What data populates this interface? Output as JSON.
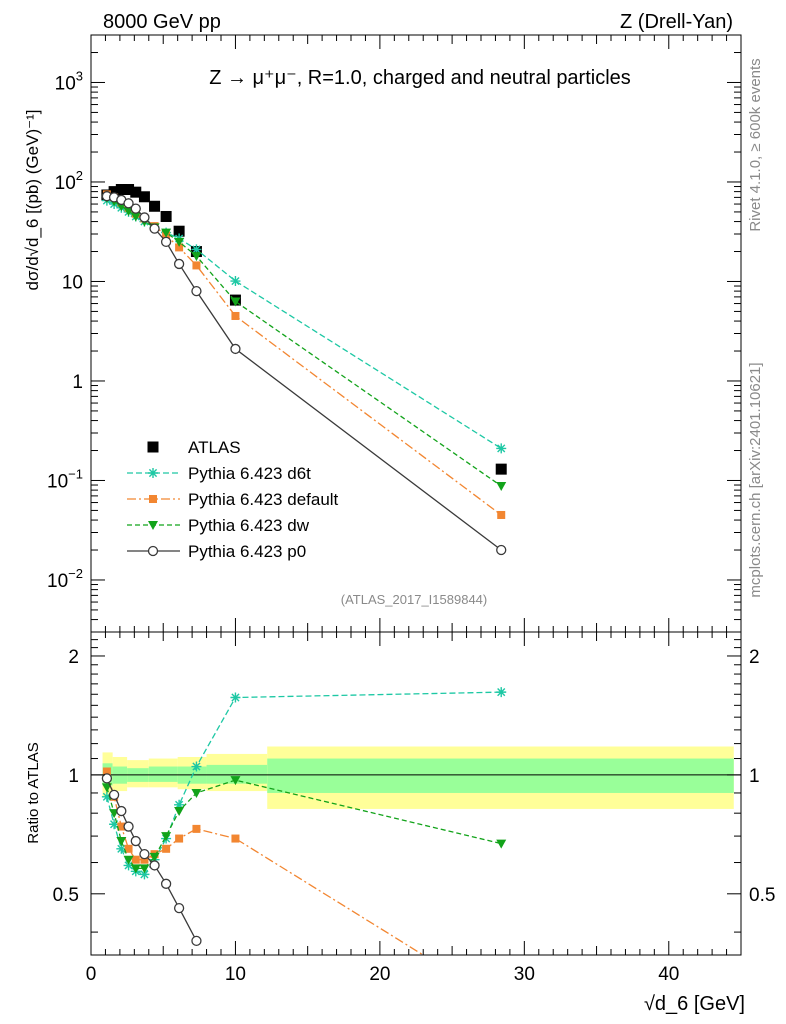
{
  "header": {
    "left_label": "8000 GeV pp",
    "right_label": "Z (Drell-Yan)"
  },
  "side_labels": {
    "rivet": "Rivet 4.1.0, ≥ 600k events",
    "mcplots": "mcplots.cern.ch [arXiv:2401.10621]"
  },
  "chart_data": [
    {
      "type": "line",
      "scale": "log",
      "title": "Z → μ⁺μ⁻, R=1.0, charged and neutral particles",
      "analysis_label": "(ATLAS_2017_I1589844)",
      "ylabel": "dσ/d√d_6 [(pb) (GeV)⁻¹]",
      "xlabel": "√d_6 [GeV]",
      "xlim": [
        0,
        45
      ],
      "ylim": [
        0.003,
        3000
      ],
      "y_ticks": [
        "10^-2",
        "10^-1",
        "1",
        "10",
        "10^2",
        "10^3"
      ],
      "legend_position": "lower-left",
      "series": [
        {
          "name": "ATLAS",
          "style": "black-square",
          "color": "#000000",
          "x": [
            1.1,
            1.6,
            2.1,
            2.6,
            3.1,
            3.7,
            4.4,
            5.2,
            6.1,
            7.3,
            10.0,
            28.4
          ],
          "y": [
            74,
            80,
            84,
            84,
            79,
            71,
            57,
            45,
            32,
            20,
            6.5,
            0.13
          ]
        },
        {
          "name": "Pythia 6.423 d6t",
          "style": "dashed-star",
          "color": "#1dc8a4",
          "x": [
            1.1,
            1.6,
            2.1,
            2.6,
            3.1,
            3.7,
            4.4,
            5.2,
            6.1,
            7.3,
            10.0,
            28.4
          ],
          "y": [
            65,
            60,
            55,
            50,
            45,
            40,
            35,
            31,
            27,
            21,
            10.1,
            0.21
          ]
        },
        {
          "name": "Pythia 6.423 default",
          "style": "dashdot-square",
          "color": "#f28631",
          "x": [
            1.1,
            1.6,
            2.1,
            2.6,
            3.1,
            3.7,
            4.4,
            5.2,
            6.1,
            7.3,
            10.0,
            28.4
          ],
          "y": [
            75,
            70,
            62,
            55,
            48,
            43,
            36,
            29,
            22,
            14.5,
            4.5,
            0.045
          ]
        },
        {
          "name": "Pythia 6.423 dw",
          "style": "dashed-triangle",
          "color": "#12a31a",
          "x": [
            1.1,
            1.6,
            2.1,
            2.6,
            3.1,
            3.7,
            4.4,
            5.2,
            6.1,
            7.3,
            10.0,
            28.4
          ],
          "y": [
            69,
            64,
            57,
            51,
            45,
            40,
            35,
            31,
            25,
            18,
            6.3,
            0.088
          ]
        },
        {
          "name": "Pythia 6.423 p0",
          "style": "solid-circle",
          "color": "#3a3a3a",
          "x": [
            1.1,
            1.6,
            2.1,
            2.6,
            3.1,
            3.7,
            4.4,
            5.2,
            6.1,
            7.3,
            10.0,
            28.4
          ],
          "y": [
            72,
            70,
            66,
            61,
            54,
            44,
            34,
            25,
            15,
            8,
            2.1,
            0.02
          ]
        }
      ]
    },
    {
      "type": "line",
      "ylabel": "Ratio to ATLAS",
      "xlabel": "√d_6 [GeV]",
      "xlim": [
        0,
        45
      ],
      "ylim": [
        0.35,
        2.3
      ],
      "x_ticks": [
        "0",
        "10",
        "20",
        "30",
        "40"
      ],
      "y_ticks": [
        "0.5",
        "1",
        "2"
      ],
      "bands": {
        "edges": [
          0.8,
          1.5,
          2.5,
          4.0,
          6.0,
          8.0,
          12.2,
          44.5
        ],
        "outer_lo": [
          0.88,
          0.91,
          0.93,
          0.93,
          0.92,
          0.91,
          0.82
        ],
        "outer_hi": [
          1.14,
          1.11,
          1.09,
          1.1,
          1.11,
          1.13,
          1.18
        ],
        "inner_lo": [
          0.94,
          0.95,
          0.96,
          0.96,
          0.95,
          0.95,
          0.9
        ],
        "inner_hi": [
          1.07,
          1.05,
          1.04,
          1.05,
          1.05,
          1.06,
          1.1
        ]
      },
      "series": [
        {
          "name": "Pythia 6.423 d6t",
          "color": "#1dc8a4",
          "x": [
            1.1,
            1.6,
            2.1,
            2.6,
            3.1,
            3.7,
            4.4,
            5.2,
            6.1,
            7.3,
            10.0,
            28.4
          ],
          "y": [
            0.88,
            0.75,
            0.65,
            0.59,
            0.57,
            0.56,
            0.61,
            0.69,
            0.84,
            1.05,
            1.57,
            1.62
          ]
        },
        {
          "name": "Pythia 6.423 default",
          "color": "#f28631",
          "x": [
            1.1,
            1.6,
            2.1,
            2.6,
            3.1,
            3.7,
            4.4,
            5.2,
            6.1,
            7.3,
            10.0,
            23.0
          ],
          "y": [
            1.02,
            0.88,
            0.74,
            0.65,
            0.61,
            0.61,
            0.63,
            0.65,
            0.69,
            0.73,
            0.69,
            0.35
          ]
        },
        {
          "name": "Pythia 6.423 dw",
          "color": "#12a31a",
          "x": [
            1.1,
            1.6,
            2.1,
            2.6,
            3.1,
            3.7,
            4.4,
            5.2,
            6.1,
            7.3,
            10.0,
            28.4
          ],
          "y": [
            0.93,
            0.8,
            0.68,
            0.61,
            0.58,
            0.58,
            0.62,
            0.7,
            0.81,
            0.9,
            0.97,
            0.67
          ]
        },
        {
          "name": "Pythia 6.423 p0",
          "color": "#3a3a3a",
          "x": [
            1.1,
            1.6,
            2.1,
            2.6,
            3.1,
            3.7,
            4.4,
            5.2,
            6.1,
            7.3
          ],
          "y": [
            0.98,
            0.89,
            0.81,
            0.74,
            0.68,
            0.63,
            0.59,
            0.53,
            0.46,
            0.38
          ]
        }
      ]
    }
  ]
}
